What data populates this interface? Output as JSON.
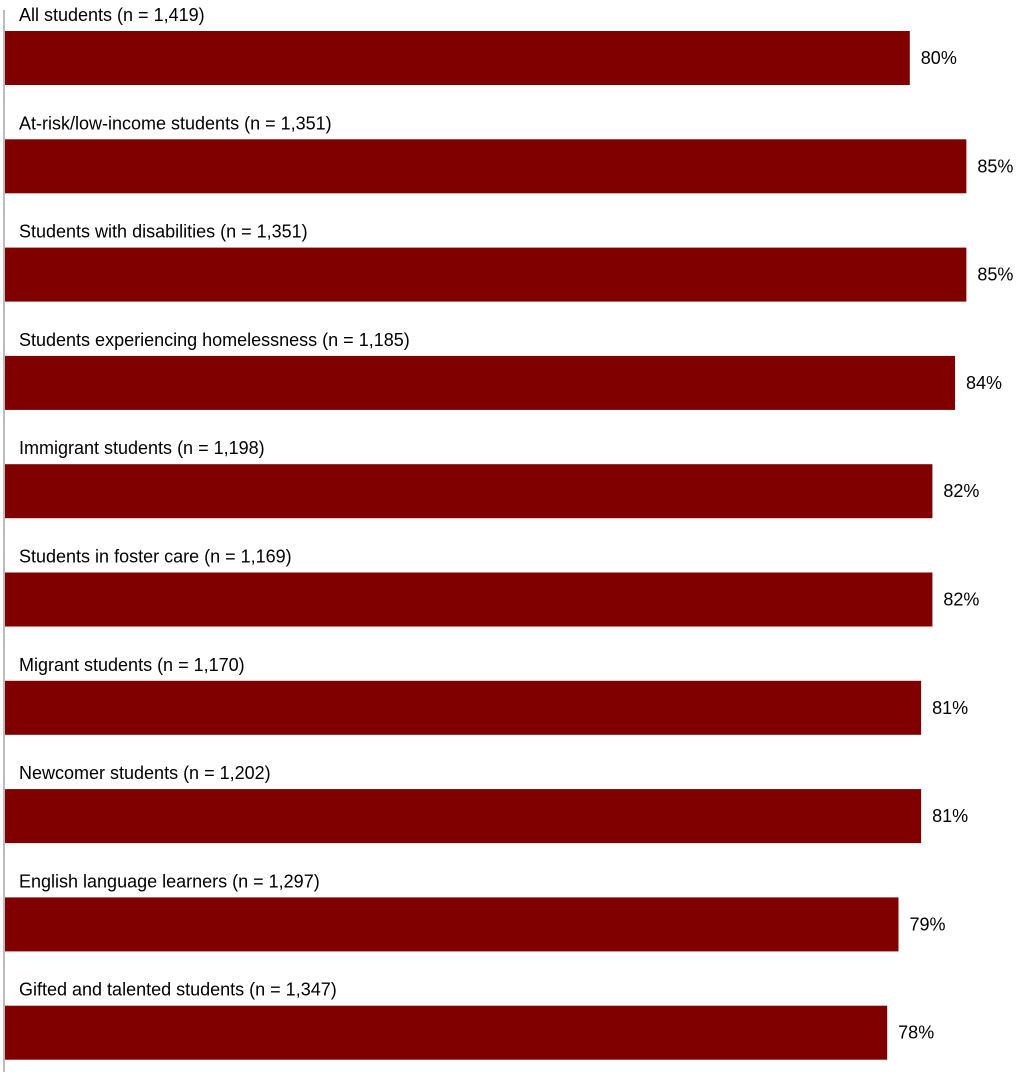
{
  "chart_data": {
    "type": "bar",
    "orientation": "horizontal",
    "categories": [
      "All students (n = 1,419)",
      "At-risk/low-income students (n = 1,351)",
      "Students with disabilities (n = 1,351)",
      "Students experiencing homelessness (n = 1,185)",
      "Immigrant students (n = 1,198)",
      "Students in foster care (n = 1,169)",
      "Migrant students (n = 1,170)",
      "Newcomer students (n = 1,202)",
      "English language learners (n = 1,297)",
      "Gifted and talented students (n = 1,347)"
    ],
    "values": [
      80,
      85,
      85,
      84,
      82,
      82,
      81,
      81,
      79,
      78
    ],
    "value_labels": [
      "80%",
      "85%",
      "85%",
      "84%",
      "82%",
      "82%",
      "81%",
      "81%",
      "79%",
      "78%"
    ],
    "xlim": [
      0,
      90
    ],
    "bar_color": "#800000",
    "axis_color": "#a6a6a6",
    "grid": false,
    "legend": "none"
  }
}
